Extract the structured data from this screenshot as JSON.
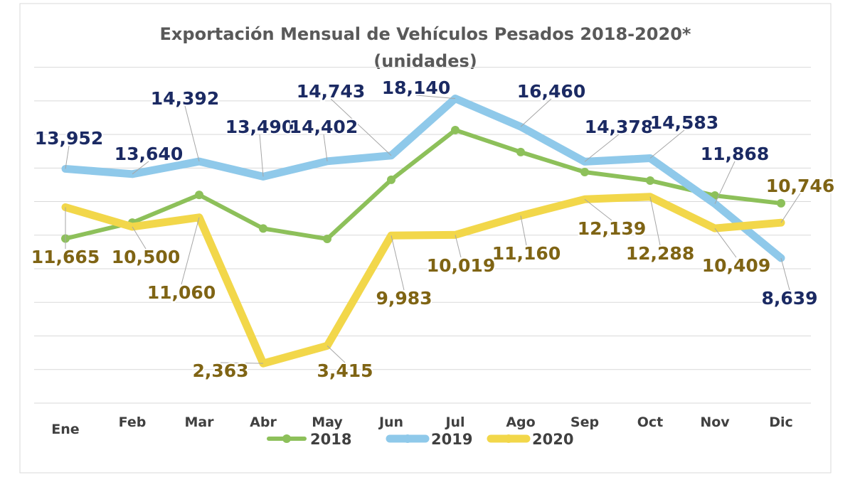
{
  "chart_data": {
    "type": "line",
    "title": "Exportación Mensual de Vehículos Pesados 2018-2020*",
    "subtitle": "(unidades)",
    "xlabel": "",
    "ylabel": "",
    "categories": [
      "Ene",
      "Feb",
      "Mar",
      "Abr",
      "May",
      "Jun",
      "Jul",
      "Ago",
      "Sep",
      "Oct",
      "Nov",
      "Dic"
    ],
    "ylim": [
      0,
      20000
    ],
    "grid": true,
    "legend_position": "bottom",
    "series": [
      {
        "name": "2018",
        "color": "#8dc05a",
        "values": [
          9800,
          10750,
          12400,
          10400,
          9780,
          13300,
          16260,
          14950,
          13760,
          13250,
          12360,
          11900
        ],
        "labels": null
      },
      {
        "name": "2019",
        "color": "#8fc9ea",
        "label_color": "#1b2a63",
        "values": [
          13952,
          13640,
          14392,
          13490,
          14402,
          14743,
          18140,
          16460,
          14378,
          14583,
          11868,
          8639
        ],
        "labels": [
          "13,952",
          "13,640",
          "14,392",
          "13,490",
          "14,402",
          "14,743",
          "18,140",
          "16,460",
          "14,378",
          "14,583",
          "11,868",
          "8,639"
        ]
      },
      {
        "name": "2020",
        "color": "#f2d74a",
        "label_color": "#7f6414",
        "values": [
          11665,
          10500,
          11060,
          2363,
          3415,
          9983,
          10019,
          11160,
          12139,
          12288,
          10409,
          10746
        ],
        "labels": [
          "11,665",
          "10,500",
          "11,060",
          "2,363",
          "3,415",
          "9,983",
          "10,019",
          "11,160",
          "12,139",
          "12,288",
          "10,409",
          "10,746"
        ]
      }
    ]
  }
}
